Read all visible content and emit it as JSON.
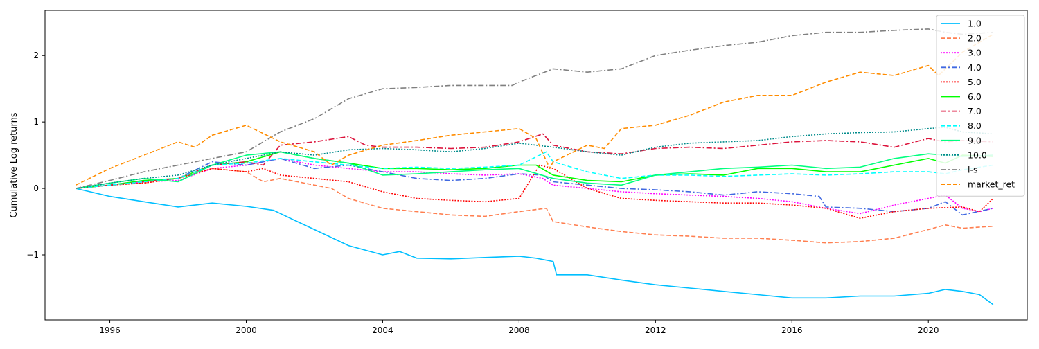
{
  "chart_data": {
    "type": "line",
    "title": "",
    "xlabel": "",
    "ylabel": "Cumulative Log returns",
    "xlim": [
      1994.1,
      2022.9
    ],
    "ylim": [
      -1.98,
      2.68
    ],
    "x_ticks": [
      1996,
      2000,
      2004,
      2008,
      2012,
      2016,
      2020
    ],
    "y_ticks": [
      -1,
      0,
      1,
      2
    ],
    "y_tick_labels": [
      "−1",
      "0",
      "1",
      "2"
    ],
    "grid": false,
    "legend_position": "top-right",
    "series": [
      {
        "name": "1.0",
        "color": "#00bfff",
        "dash": "solid",
        "x": [
          1995.0,
          1996.0,
          1997.0,
          1998.0,
          1999.0,
          2000.0,
          2000.8,
          2001.5,
          2002.0,
          2003.0,
          2004.0,
          2004.5,
          2005.0,
          2006.0,
          2007.0,
          2008.0,
          2008.5,
          2009.0,
          2009.1,
          2010.0,
          2011.0,
          2012.0,
          2013.0,
          2014.0,
          2015.0,
          2016.0,
          2017.0,
          2018.0,
          2019.0,
          2020.0,
          2020.5,
          2021.0,
          2021.5,
          2021.9
        ],
        "y": [
          0.0,
          -0.12,
          -0.2,
          -0.28,
          -0.22,
          -0.27,
          -0.33,
          -0.5,
          -0.62,
          -0.86,
          -1.0,
          -0.95,
          -1.05,
          -1.06,
          -1.04,
          -1.02,
          -1.05,
          -1.1,
          -1.3,
          -1.3,
          -1.38,
          -1.45,
          -1.5,
          -1.55,
          -1.6,
          -1.65,
          -1.65,
          -1.62,
          -1.62,
          -1.58,
          -1.52,
          -1.55,
          -1.6,
          -1.75
        ]
      },
      {
        "name": "2.0",
        "color": "#ff7f50",
        "dash": "dashed",
        "x": [
          1995.0,
          1996.0,
          1997.0,
          1998.0,
          1999.0,
          2000.0,
          2000.5,
          2001.0,
          2002.0,
          2002.5,
          2003.0,
          2004.0,
          2005.0,
          2006.0,
          2007.0,
          2008.0,
          2008.8,
          2009.0,
          2010.0,
          2011.0,
          2012.0,
          2013.0,
          2014.0,
          2015.0,
          2016.0,
          2017.0,
          2018.0,
          2019.0,
          2020.0,
          2020.5,
          2021.0,
          2021.9
        ],
        "y": [
          0.0,
          0.05,
          0.08,
          0.15,
          0.3,
          0.25,
          0.1,
          0.15,
          0.05,
          0.0,
          -0.15,
          -0.3,
          -0.35,
          -0.4,
          -0.42,
          -0.35,
          -0.3,
          -0.5,
          -0.58,
          -0.65,
          -0.7,
          -0.72,
          -0.75,
          -0.75,
          -0.78,
          -0.82,
          -0.8,
          -0.75,
          -0.62,
          -0.55,
          -0.6,
          -0.57
        ]
      },
      {
        "name": "3.0",
        "color": "#ff00ff",
        "dash": "dotted",
        "x": [
          1995.0,
          1996.0,
          1997.0,
          1998.0,
          1999.0,
          2000.0,
          2001.0,
          2002.0,
          2003.0,
          2004.0,
          2005.0,
          2006.0,
          2007.0,
          2008.0,
          2008.7,
          2009.0,
          2010.0,
          2011.0,
          2012.0,
          2013.0,
          2014.0,
          2015.0,
          2016.0,
          2017.0,
          2018.0,
          2019.0,
          2020.0,
          2020.5,
          2021.0,
          2021.5,
          2021.9
        ],
        "y": [
          0.0,
          0.05,
          0.1,
          0.12,
          0.3,
          0.35,
          0.45,
          0.35,
          0.3,
          0.25,
          0.25,
          0.22,
          0.2,
          0.22,
          0.15,
          0.05,
          0.0,
          -0.05,
          -0.08,
          -0.1,
          -0.12,
          -0.15,
          -0.2,
          -0.3,
          -0.38,
          -0.25,
          -0.15,
          -0.1,
          -0.3,
          -0.35,
          -0.3
        ]
      },
      {
        "name": "4.0",
        "color": "#4169e1",
        "dash": "dashdot",
        "x": [
          1995.0,
          1996.0,
          1997.0,
          1998.0,
          1999.0,
          2000.0,
          2001.0,
          2002.0,
          2003.0,
          2004.0,
          2005.0,
          2006.0,
          2007.0,
          2008.0,
          2008.7,
          2009.0,
          2010.0,
          2011.0,
          2012.0,
          2013.0,
          2014.0,
          2015.0,
          2016.0,
          2016.8,
          2017.0,
          2018.0,
          2019.0,
          2020.0,
          2020.5,
          2021.0,
          2021.9
        ],
        "y": [
          0.0,
          0.05,
          0.1,
          0.15,
          0.4,
          0.35,
          0.45,
          0.3,
          0.35,
          0.25,
          0.15,
          0.12,
          0.15,
          0.22,
          0.2,
          0.1,
          0.05,
          0.0,
          -0.02,
          -0.05,
          -0.1,
          -0.05,
          -0.08,
          -0.12,
          -0.28,
          -0.3,
          -0.35,
          -0.3,
          -0.2,
          -0.4,
          -0.3
        ]
      },
      {
        "name": "5.0",
        "color": "#ff0000",
        "dash": "dotted",
        "x": [
          1995.0,
          1996.0,
          1997.0,
          1998.0,
          1999.0,
          2000.0,
          2000.5,
          2001.0,
          2002.0,
          2003.0,
          2004.0,
          2005.0,
          2006.0,
          2007.0,
          2008.0,
          2008.6,
          2009.0,
          2010.0,
          2011.0,
          2012.0,
          2013.0,
          2014.0,
          2015.0,
          2016.0,
          2017.0,
          2018.0,
          2019.0,
          2020.0,
          2021.0,
          2021.5,
          2021.9
        ],
        "y": [
          0.0,
          0.05,
          0.08,
          0.15,
          0.3,
          0.25,
          0.3,
          0.2,
          0.15,
          0.1,
          -0.05,
          -0.15,
          -0.18,
          -0.2,
          -0.15,
          0.35,
          0.3,
          0.0,
          -0.15,
          -0.18,
          -0.2,
          -0.22,
          -0.22,
          -0.25,
          -0.3,
          -0.45,
          -0.35,
          -0.3,
          -0.28,
          -0.35,
          -0.15
        ]
      },
      {
        "name": "6.0",
        "color": "#00ff00",
        "dash": "solid",
        "x": [
          1995.0,
          1996.0,
          1997.0,
          1998.0,
          1999.0,
          2000.0,
          2001.0,
          2002.0,
          2003.0,
          2004.0,
          2005.0,
          2006.0,
          2007.0,
          2008.0,
          2008.5,
          2009.0,
          2010.0,
          2011.0,
          2012.0,
          2013.0,
          2014.0,
          2015.0,
          2016.0,
          2017.0,
          2018.0,
          2019.0,
          2020.0,
          2020.5,
          2021.0,
          2021.9
        ],
        "y": [
          0.0,
          0.05,
          0.12,
          0.15,
          0.35,
          0.4,
          0.55,
          0.45,
          0.38,
          0.3,
          0.3,
          0.28,
          0.3,
          0.35,
          0.35,
          0.2,
          0.12,
          0.1,
          0.2,
          0.22,
          0.2,
          0.3,
          0.3,
          0.25,
          0.25,
          0.35,
          0.45,
          0.38,
          0.5,
          0.48
        ]
      },
      {
        "name": "7.0",
        "color": "#dc143c",
        "dash": "dashdot",
        "x": [
          1995.0,
          1996.0,
          1997.0,
          1998.0,
          1999.0,
          2000.0,
          2000.5,
          2001.0,
          2002.0,
          2003.0,
          2003.5,
          2004.0,
          2005.0,
          2006.0,
          2007.0,
          2008.0,
          2008.7,
          2009.0,
          2010.0,
          2011.0,
          2012.0,
          2013.0,
          2014.0,
          2015.0,
          2016.0,
          2017.0,
          2018.0,
          2019.0,
          2020.0,
          2020.5,
          2021.0,
          2021.9
        ],
        "y": [
          0.0,
          0.05,
          0.1,
          0.15,
          0.35,
          0.4,
          0.35,
          0.65,
          0.7,
          0.78,
          0.65,
          0.62,
          0.62,
          0.6,
          0.62,
          0.7,
          0.82,
          0.65,
          0.55,
          0.52,
          0.6,
          0.62,
          0.6,
          0.65,
          0.7,
          0.72,
          0.7,
          0.62,
          0.75,
          0.7,
          0.72,
          0.7
        ]
      },
      {
        "name": "8.0",
        "color": "#00ffff",
        "dash": "dashed",
        "x": [
          1995.0,
          1996.0,
          1997.0,
          1998.0,
          1999.0,
          2000.0,
          2001.0,
          2002.0,
          2003.0,
          2004.0,
          2005.0,
          2006.0,
          2007.0,
          2008.0,
          2008.8,
          2009.0,
          2010.0,
          2011.0,
          2012.0,
          2013.0,
          2014.0,
          2015.0,
          2016.0,
          2017.0,
          2018.0,
          2019.0,
          2020.0,
          2020.5,
          2021.0,
          2021.9
        ],
        "y": [
          0.0,
          0.05,
          0.1,
          0.15,
          0.35,
          0.38,
          0.45,
          0.4,
          0.35,
          0.3,
          0.32,
          0.3,
          0.32,
          0.35,
          0.55,
          0.4,
          0.25,
          0.15,
          0.2,
          0.2,
          0.18,
          0.2,
          0.22,
          0.2,
          0.22,
          0.25,
          0.25,
          0.22,
          0.28,
          0.35
        ]
      },
      {
        "name": "9.0",
        "color": "#00ff7f",
        "dash": "solid",
        "x": [
          1995.0,
          1996.0,
          1997.0,
          1998.0,
          1999.0,
          2000.0,
          2001.0,
          2002.0,
          2003.0,
          2004.0,
          2005.0,
          2006.0,
          2007.0,
          2008.0,
          2009.0,
          2010.0,
          2011.0,
          2012.0,
          2013.0,
          2014.0,
          2015.0,
          2016.0,
          2017.0,
          2018.0,
          2019.0,
          2020.0,
          2020.5,
          2021.0,
          2021.9
        ],
        "y": [
          0.0,
          0.08,
          0.15,
          0.1,
          0.35,
          0.5,
          0.55,
          0.45,
          0.38,
          0.2,
          0.22,
          0.25,
          0.28,
          0.3,
          0.15,
          0.08,
          0.05,
          0.2,
          0.25,
          0.3,
          0.32,
          0.35,
          0.3,
          0.32,
          0.45,
          0.52,
          0.5,
          0.48,
          0.5
        ]
      },
      {
        "name": "10.0",
        "color": "#008b8b",
        "dash": "dotted",
        "x": [
          1995.0,
          1996.0,
          1997.0,
          1998.0,
          1999.0,
          2000.0,
          2001.0,
          2002.0,
          2003.0,
          2004.0,
          2005.0,
          2006.0,
          2007.0,
          2008.0,
          2009.0,
          2010.0,
          2011.0,
          2012.0,
          2013.0,
          2014.0,
          2015.0,
          2016.0,
          2017.0,
          2018.0,
          2019.0,
          2020.0,
          2020.5,
          2021.0,
          2021.9
        ],
        "y": [
          0.0,
          0.08,
          0.15,
          0.2,
          0.35,
          0.45,
          0.55,
          0.5,
          0.58,
          0.6,
          0.58,
          0.55,
          0.6,
          0.68,
          0.62,
          0.55,
          0.5,
          0.62,
          0.68,
          0.7,
          0.72,
          0.78,
          0.82,
          0.84,
          0.85,
          0.9,
          0.92,
          0.85,
          0.82
        ]
      },
      {
        "name": "l-s",
        "color": "#808080",
        "dash": "dashdot",
        "x": [
          1995.0,
          1996.0,
          1997.0,
          1998.0,
          1999.0,
          2000.0,
          2001.0,
          2002.0,
          2003.0,
          2004.0,
          2005.0,
          2006.0,
          2007.0,
          2007.8,
          2008.0,
          2009.0,
          2010.0,
          2011.0,
          2012.0,
          2013.0,
          2014.0,
          2015.0,
          2016.0,
          2017.0,
          2018.0,
          2019.0,
          2020.0,
          2020.5,
          2021.0,
          2021.9
        ],
        "y": [
          0.0,
          0.12,
          0.25,
          0.35,
          0.45,
          0.55,
          0.85,
          1.05,
          1.35,
          1.5,
          1.52,
          1.55,
          1.55,
          1.55,
          1.6,
          1.8,
          1.75,
          1.8,
          2.0,
          2.08,
          2.15,
          2.2,
          2.3,
          2.35,
          2.35,
          2.38,
          2.4,
          2.35,
          2.32,
          2.35
        ]
      },
      {
        "name": "market_ret",
        "color": "#ff8c00",
        "dash": "dashed",
        "x": [
          1995.0,
          1996.0,
          1997.0,
          1998.0,
          1998.5,
          1999.0,
          2000.0,
          2001.0,
          2002.0,
          2002.5,
          2003.0,
          2004.0,
          2005.0,
          2006.0,
          2007.0,
          2008.0,
          2008.5,
          2008.9,
          2009.0,
          2010.0,
          2010.5,
          2011.0,
          2012.0,
          2013.0,
          2014.0,
          2015.0,
          2016.0,
          2017.0,
          2018.0,
          2019.0,
          2020.0,
          2020.3,
          2021.0,
          2021.9
        ],
        "y": [
          0.05,
          0.3,
          0.5,
          0.7,
          0.62,
          0.8,
          0.95,
          0.7,
          0.55,
          0.35,
          0.5,
          0.65,
          0.72,
          0.8,
          0.85,
          0.9,
          0.75,
          0.3,
          0.4,
          0.65,
          0.6,
          0.9,
          0.95,
          1.1,
          1.3,
          1.4,
          1.4,
          1.6,
          1.75,
          1.7,
          1.85,
          1.7,
          2.05,
          2.32
        ]
      }
    ]
  }
}
